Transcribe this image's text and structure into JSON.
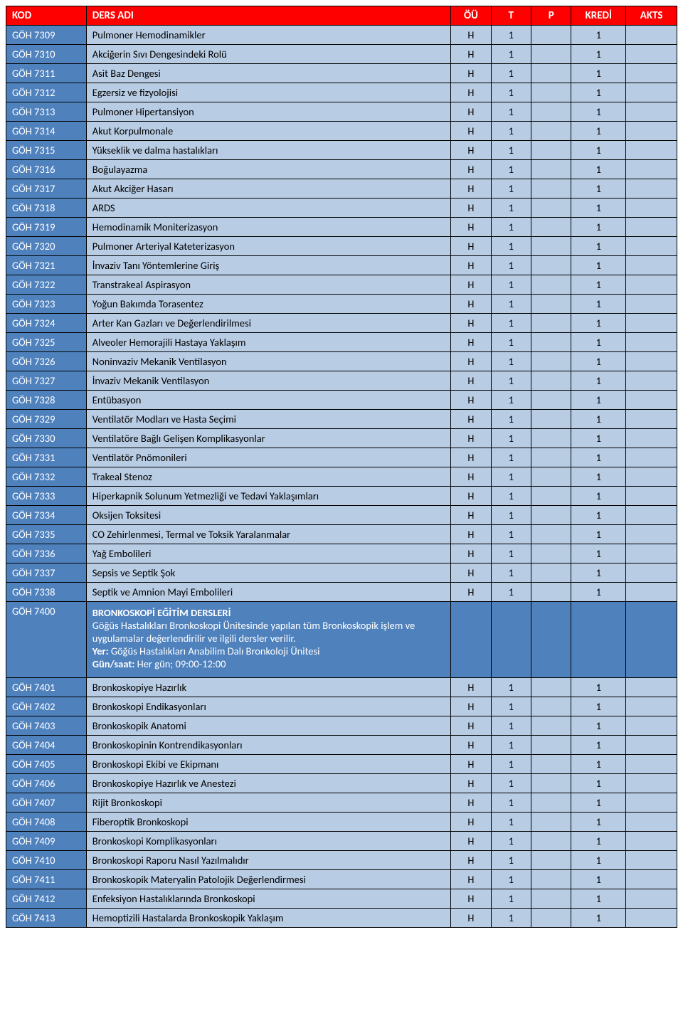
{
  "colors": {
    "header_bg": "#ff0000",
    "header_fg": "#ffffff",
    "kod_bg": "#4f81bd",
    "kod_fg": "#ffffff",
    "cell_bg": "#b8cce4",
    "border": "#000000",
    "section_bg": "#4f81bd",
    "section_fg": "#ffffff"
  },
  "columns": {
    "kod": "KOD",
    "ders": "DERS ADI",
    "ou": "ÖÜ",
    "t": "T",
    "p": "P",
    "kredi": "KREDİ",
    "akts": "AKTS"
  },
  "rows": [
    {
      "kod": "GÖH 7309",
      "ders": "Pulmoner Hemodinamikler",
      "ou": "H",
      "t": "1",
      "p": "",
      "kredi": "1",
      "akts": ""
    },
    {
      "kod": "GÖH 7310",
      "ders": "Akciğerin Sıvı Dengesindeki Rolü",
      "ou": "H",
      "t": "1",
      "p": "",
      "kredi": "1",
      "akts": ""
    },
    {
      "kod": "GÖH 7311",
      "ders": "Asit Baz Dengesi",
      "ou": "H",
      "t": "1",
      "p": "",
      "kredi": "1",
      "akts": ""
    },
    {
      "kod": "GÖH 7312",
      "ders": "Egzersiz ve fizyolojisi",
      "ou": "H",
      "t": "1",
      "p": "",
      "kredi": "1",
      "akts": ""
    },
    {
      "kod": "GÖH 7313",
      "ders": "Pulmoner Hipertansiyon",
      "ou": "H",
      "t": "1",
      "p": "",
      "kredi": "1",
      "akts": ""
    },
    {
      "kod": "GÖH 7314",
      "ders": "Akut Korpulmonale",
      "ou": "H",
      "t": "1",
      "p": "",
      "kredi": "1",
      "akts": ""
    },
    {
      "kod": "GÖH 7315",
      "ders": "Yükseklik ve dalma hastalıkları",
      "ou": "H",
      "t": "1",
      "p": "",
      "kredi": "1",
      "akts": ""
    },
    {
      "kod": "GÖH 7316",
      "ders": "Boğulayazma",
      "ou": "H",
      "t": "1",
      "p": "",
      "kredi": "1",
      "akts": ""
    },
    {
      "kod": "GÖH 7317",
      "ders": "Akut Akciğer Hasarı",
      "ou": "H",
      "t": "1",
      "p": "",
      "kredi": "1",
      "akts": ""
    },
    {
      "kod": "GÖH 7318",
      "ders": "ARDS",
      "ou": "H",
      "t": "1",
      "p": "",
      "kredi": "1",
      "akts": ""
    },
    {
      "kod": "GÖH 7319",
      "ders": "Hemodinamik Moniterizasyon",
      "ou": "H",
      "t": "1",
      "p": "",
      "kredi": "1",
      "akts": ""
    },
    {
      "kod": "GÖH 7320",
      "ders": "Pulmoner Arteriyal Kateterizasyon",
      "ou": "H",
      "t": "1",
      "p": "",
      "kredi": "1",
      "akts": ""
    },
    {
      "kod": "GÖH 7321",
      "ders": "İnvaziv Tanı Yöntemlerine Giriş",
      "ou": "H",
      "t": "1",
      "p": "",
      "kredi": "1",
      "akts": ""
    },
    {
      "kod": "GÖH 7322",
      "ders": "Transtrakeal Aspirasyon",
      "ou": "H",
      "t": "1",
      "p": "",
      "kredi": "1",
      "akts": ""
    },
    {
      "kod": "GÖH 7323",
      "ders": "Yoğun Bakımda Torasentez",
      "ou": "H",
      "t": "1",
      "p": "",
      "kredi": "1",
      "akts": ""
    },
    {
      "kod": "GÖH 7324",
      "ders": "Arter Kan Gazları ve Değerlendirilmesi",
      "ou": "H",
      "t": "1",
      "p": "",
      "kredi": "1",
      "akts": ""
    },
    {
      "kod": "GÖH 7325",
      "ders": "Alveoler Hemorajili Hastaya Yaklaşım",
      "ou": "H",
      "t": "1",
      "p": "",
      "kredi": "1",
      "akts": ""
    },
    {
      "kod": "GÖH 7326",
      "ders": "Noninvaziv Mekanik Ventilasyon",
      "ou": "H",
      "t": "1",
      "p": "",
      "kredi": "1",
      "akts": ""
    },
    {
      "kod": "GÖH 7327",
      "ders": "İnvaziv Mekanik Ventilasyon",
      "ou": "H",
      "t": "1",
      "p": "",
      "kredi": "1",
      "akts": ""
    },
    {
      "kod": "GÖH 7328",
      "ders": "Entübasyon",
      "ou": "H",
      "t": "1",
      "p": "",
      "kredi": "1",
      "akts": ""
    },
    {
      "kod": "GÖH 7329",
      "ders": "Ventilatör Modları ve Hasta Seçimi",
      "ou": "H",
      "t": "1",
      "p": "",
      "kredi": "1",
      "akts": ""
    },
    {
      "kod": "GÖH 7330",
      "ders": "Ventilatöre Bağlı Gelişen Komplikasyonlar",
      "ou": "H",
      "t": "1",
      "p": "",
      "kredi": "1",
      "akts": ""
    },
    {
      "kod": "GÖH 7331",
      "ders": "Ventilatör Pnömonileri",
      "ou": "H",
      "t": "1",
      "p": "",
      "kredi": "1",
      "akts": ""
    },
    {
      "kod": "GÖH 7332",
      "ders": "Trakeal Stenoz",
      "ou": "H",
      "t": "1",
      "p": "",
      "kredi": "1",
      "akts": ""
    },
    {
      "kod": "GÖH 7333",
      "ders": "Hiperkapnik Solunum Yetmezliği ve Tedavi Yaklaşımları",
      "ou": "H",
      "t": "1",
      "p": "",
      "kredi": "1",
      "akts": ""
    },
    {
      "kod": "GÖH 7334",
      "ders": "Oksijen Toksitesi",
      "ou": "H",
      "t": "1",
      "p": "",
      "kredi": "1",
      "akts": ""
    },
    {
      "kod": "GÖH 7335",
      "ders": "CO Zehirlenmesi, Termal ve Toksik Yaralanmalar",
      "ou": "H",
      "t": "1",
      "p": "",
      "kredi": "1",
      "akts": ""
    },
    {
      "kod": "GÖH 7336",
      "ders": "Yağ Embolileri",
      "ou": "H",
      "t": "1",
      "p": "",
      "kredi": "1",
      "akts": ""
    },
    {
      "kod": "GÖH 7337",
      "ders": "Sepsis ve Septik Şok",
      "ou": "H",
      "t": "1",
      "p": "",
      "kredi": "1",
      "akts": ""
    },
    {
      "kod": "GÖH 7338",
      "ders": "Septik ve Amnion Mayi Embolileri",
      "ou": "H",
      "t": "1",
      "p": "",
      "kredi": "1",
      "akts": ""
    }
  ],
  "section": {
    "kod": "GÖH 7400",
    "title": "BRONKOSKOPİ EĞİTİM DERSLERİ",
    "body": "Göğüs Hastalıkları Bronkoskopi Ünitesinde yapılan tüm Bronkoskopik işlem ve uygulamalar değerlendirilir ve ilgili dersler verilir.",
    "loc_label": "Yer:",
    "loc": "Göğüs Hastalıkları Anabilim Dalı Bronkoloji Ünitesi",
    "time_label": "Gün/saat:",
    "time": "Her gün; 09:00-12:00"
  },
  "rows2": [
    {
      "kod": "GÖH 7401",
      "ders": "Bronkoskopiye Hazırlık",
      "ou": "H",
      "t": "1",
      "p": "",
      "kredi": "1",
      "akts": ""
    },
    {
      "kod": "GÖH 7402",
      "ders": "Bronkoskopi Endikasyonları",
      "ou": "H",
      "t": "1",
      "p": "",
      "kredi": "1",
      "akts": ""
    },
    {
      "kod": "GÖH 7403",
      "ders": "Bronkoskopik Anatomi",
      "ou": "H",
      "t": "1",
      "p": "",
      "kredi": "1",
      "akts": ""
    },
    {
      "kod": "GÖH 7404",
      "ders": "Bronkoskopinin Kontrendikasyonları",
      "ou": "H",
      "t": "1",
      "p": "",
      "kredi": "1",
      "akts": ""
    },
    {
      "kod": "GÖH 7405",
      "ders": "Bronkoskopi Ekibi ve Ekipmanı",
      "ou": "H",
      "t": "1",
      "p": "",
      "kredi": "1",
      "akts": ""
    },
    {
      "kod": "GÖH 7406",
      "ders": "Bronkoskopiye Hazırlık ve Anestezi",
      "ou": "H",
      "t": "1",
      "p": "",
      "kredi": "1",
      "akts": ""
    },
    {
      "kod": "GÖH 7407",
      "ders": "Rijit Bronkoskopi",
      "ou": "H",
      "t": "1",
      "p": "",
      "kredi": "1",
      "akts": ""
    },
    {
      "kod": "GÖH 7408",
      "ders": "Fiberoptik Bronkoskopi",
      "ou": "H",
      "t": "1",
      "p": "",
      "kredi": "1",
      "akts": ""
    },
    {
      "kod": "GÖH 7409",
      "ders": "Bronkoskopi Komplikasyonları",
      "ou": "H",
      "t": "1",
      "p": "",
      "kredi": "1",
      "akts": ""
    },
    {
      "kod": "GÖH 7410",
      "ders": "Bronkoskopi Raporu Nasıl Yazılmalıdır",
      "ou": "H",
      "t": "1",
      "p": "",
      "kredi": "1",
      "akts": ""
    },
    {
      "kod": "GÖH 7411",
      "ders": "Bronkoskopik Materyalin Patolojik Değerlendirmesi",
      "ou": "H",
      "t": "1",
      "p": "",
      "kredi": "1",
      "akts": ""
    },
    {
      "kod": "GÖH 7412",
      "ders": "Enfeksiyon Hastalıklarında Bronkoskopi",
      "ou": "H",
      "t": "1",
      "p": "",
      "kredi": "1",
      "akts": ""
    },
    {
      "kod": "GÖH 7413",
      "ders": "Hemoptizili Hastalarda Bronkoskopik Yaklaşım",
      "ou": "H",
      "t": "1",
      "p": "",
      "kredi": "1",
      "akts": ""
    }
  ]
}
